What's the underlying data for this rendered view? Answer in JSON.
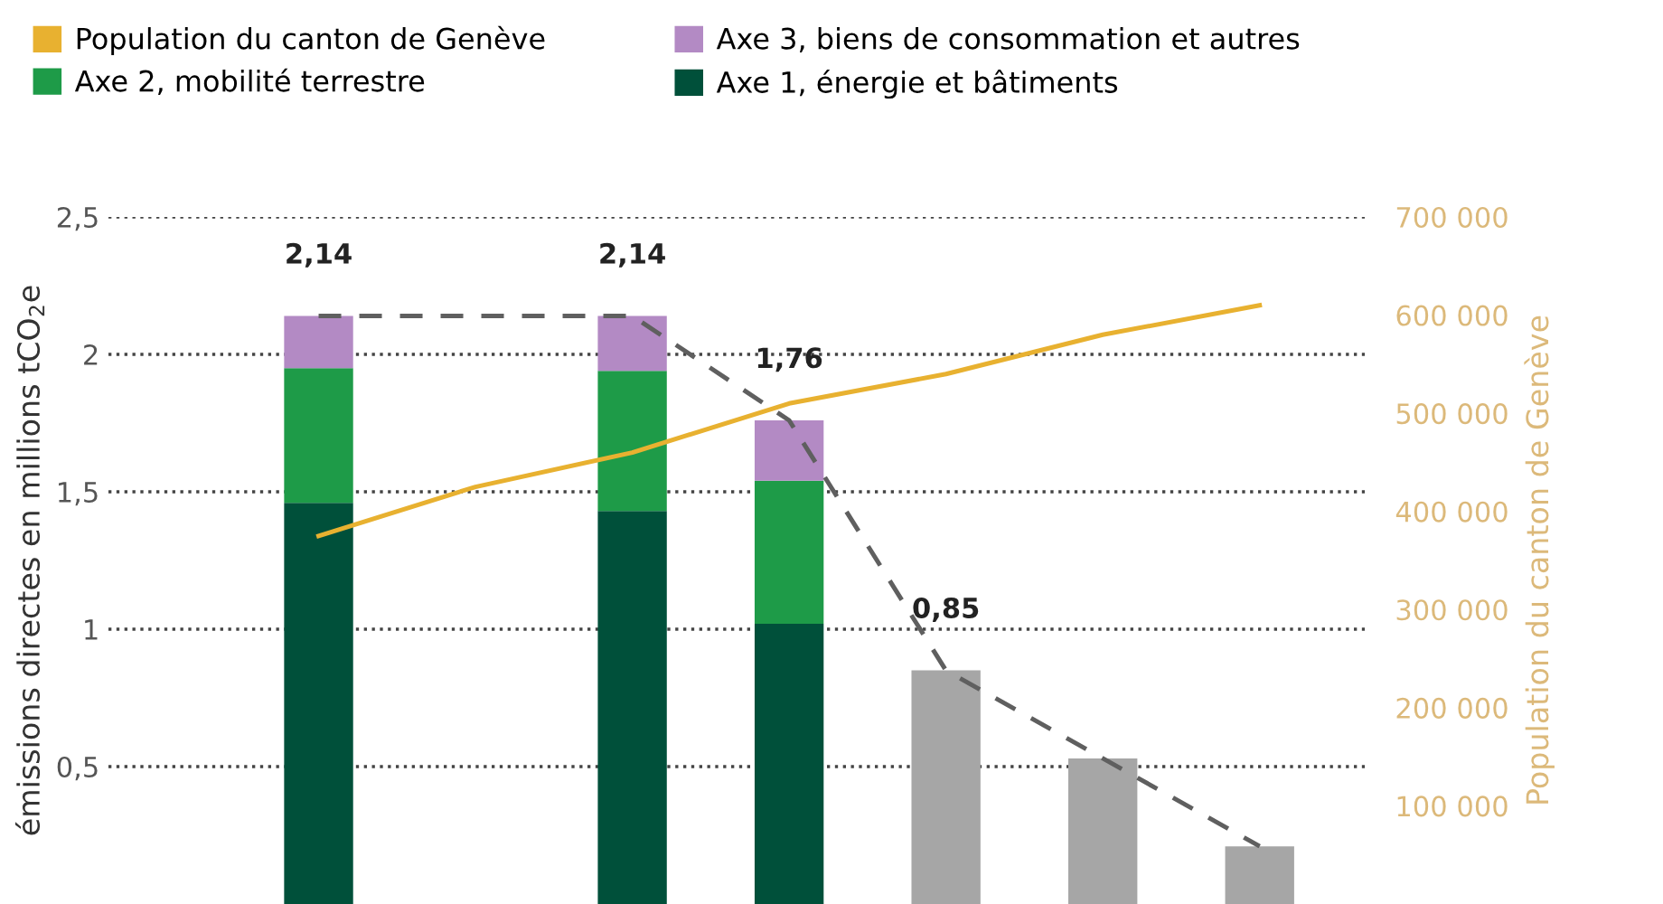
{
  "chart_data": {
    "type": "bar",
    "stacked": true,
    "categories": [
      null,
      null,
      null,
      null,
      null,
      null,
      null
    ],
    "ylabel": "émissions directes en millions tCO$_{2}$e",
    "y2label": "Population du canton de Genève",
    "series": [
      {
        "name": "Axe 1, énergie et bâtiments",
        "color": "#00503a",
        "values": [
          1.46,
          null,
          1.43,
          1.02,
          null,
          null,
          null
        ]
      },
      {
        "name": "Axe 2, mobilité terrestre",
        "color": "#1e9b48",
        "values": [
          0.49,
          null,
          0.51,
          0.52,
          null,
          null,
          null
        ]
      },
      {
        "name": "Axe 3, biens de consommation et autres",
        "color": "#b38ac4",
        "values": [
          0.19,
          null,
          0.2,
          0.22,
          null,
          null,
          null
        ]
      },
      {
        "color": "#a6a6a6",
        "values": [
          null,
          null,
          null,
          null,
          0.85,
          0.53,
          0.21
        ]
      },
      {
        "type": "line",
        "color": "#5f5f5f",
        "line_style": "dashed",
        "values": [
          2.14,
          2.14,
          2.14,
          1.76,
          0.85,
          0.53,
          0.21
        ]
      },
      {
        "type": "line",
        "axis": "y2",
        "name": "Population du canton de Genève",
        "color": "#e8b130",
        "line_style": "solid",
        "values": [
          375000,
          425000,
          460000,
          510000,
          540000,
          580000,
          610000
        ]
      }
    ],
    "totals": [
      "2,14",
      null,
      "2,14",
      "1,76",
      "0,85",
      null,
      null
    ],
    "ylim": [
      0,
      2.5
    ],
    "yticks": [
      {
        "value": 0.5,
        "label": "0,5"
      },
      1,
      {
        "value": 1.5,
        "label": "1,5"
      },
      2,
      {
        "value": 2.5,
        "label": "2,5"
      }
    ],
    "y2lim": [
      0,
      700000
    ],
    "y2ticks": [
      {
        "value": 100000,
        "label": "100 000"
      },
      {
        "value": 200000,
        "label": "200 000"
      },
      {
        "value": 300000,
        "label": "300 000"
      },
      {
        "value": 400000,
        "label": "400 000"
      },
      {
        "value": 500000,
        "label": "500 000"
      },
      {
        "value": 600000,
        "label": "600 000"
      },
      {
        "value": 700000,
        "label": "700 000"
      }
    ],
    "grid": "y",
    "legend": "top",
    "tick_labels": "y"
  }
}
